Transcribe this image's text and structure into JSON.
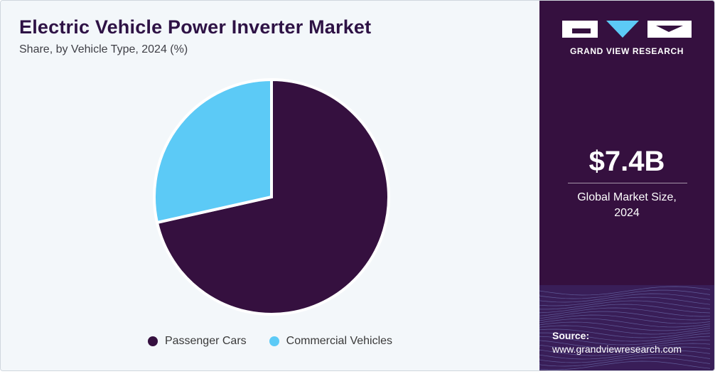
{
  "header": {
    "title": "Electric Vehicle Power Inverter Market",
    "subtitle": "Share, by Vehicle Type, 2024 (%)"
  },
  "chart_data": {
    "type": "pie",
    "title": "Electric Vehicle Power Inverter Market",
    "subtitle": "Share, by Vehicle Type, 2024 (%)",
    "categories": [
      "Passenger Cars",
      "Commercial Vehicles"
    ],
    "values": [
      71.5,
      28.5
    ],
    "colors": [
      "#35103f",
      "#5ccaf6"
    ],
    "start_angle_deg": 0,
    "direction": "clockwise",
    "legend_position": "bottom-center"
  },
  "sidebar": {
    "brand": "GRAND VIEW RESEARCH",
    "market_size": "$7.4B",
    "market_size_label_line1": "Global Market Size,",
    "market_size_label_line2": "2024",
    "source_title": "Source:",
    "source_url": "www.grandviewresearch.com"
  },
  "colors": {
    "sidebar_bg": "#35103f",
    "title_color": "#2e1245",
    "accent": "#5ccaf6",
    "panel_bg": "#f3f7fa"
  },
  "icons": {
    "logo": "grand-view-research-logo"
  }
}
